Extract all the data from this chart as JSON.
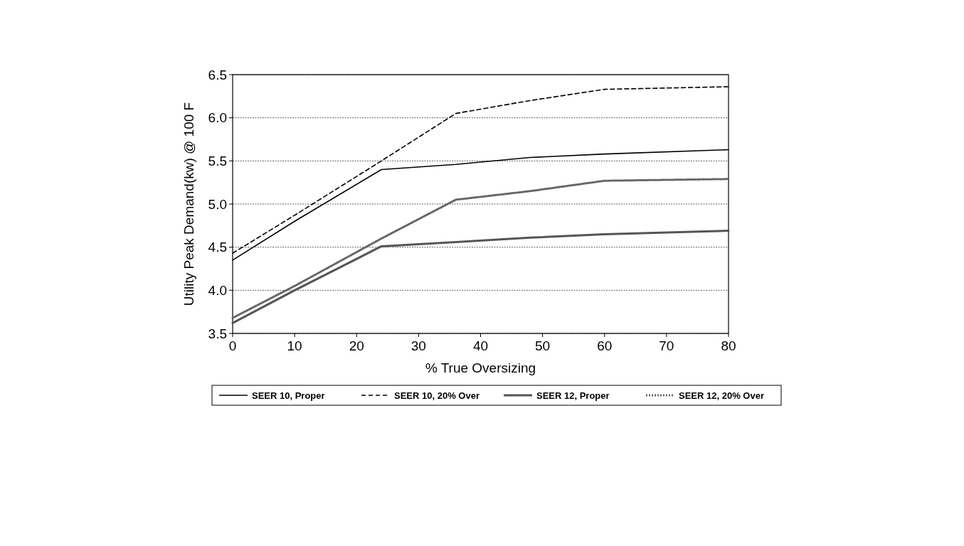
{
  "chart_data": {
    "type": "line",
    "xlabel": "% True Oversizing",
    "ylabel": "Utility Peak Demand(kw) @ 100 F",
    "xlim": [
      0,
      80
    ],
    "xticks": [
      0,
      10,
      20,
      30,
      40,
      50,
      60,
      70,
      80
    ],
    "ylim": [
      3.5,
      6.5
    ],
    "yticks": [
      {
        "value": 3.5,
        "label": "3.5"
      },
      {
        "value": 4,
        "label": "4.0"
      },
      {
        "value": 4.5,
        "label": "4.5"
      },
      {
        "value": 5,
        "label": "5.0"
      },
      {
        "value": 5.5,
        "label": "5.5"
      },
      {
        "value": 6,
        "label": "6.0"
      },
      {
        "value": 6.5,
        "label": "6.5"
      }
    ],
    "grid": "y",
    "legend": "bottom",
    "marker": "none",
    "series": [
      {
        "name": "SEER 10, Proper",
        "color": "#000000",
        "line_style": "solid",
        "x": [
          0,
          10,
          24,
          36,
          48,
          60,
          80
        ],
        "values": [
          4.35,
          4.8,
          5.4,
          5.46,
          5.54,
          5.58,
          5.63
        ]
      },
      {
        "name": "SEER 10, 20% Over",
        "color": "#000000",
        "line_style": "dashed",
        "x": [
          0,
          10,
          24,
          36,
          48,
          60,
          80
        ],
        "values": [
          4.43,
          4.87,
          5.5,
          6.05,
          6.2,
          6.33,
          6.36
        ]
      },
      {
        "name": "SEER 12, Proper",
        "color": "#555555",
        "line_style": "solid",
        "x": [
          0,
          10,
          24,
          36,
          48,
          60,
          80
        ],
        "values": [
          3.62,
          4.0,
          4.51,
          4.56,
          4.61,
          4.65,
          4.69
        ]
      },
      {
        "name": "SEER 12, 20% Over",
        "color": "#666666",
        "line_style": "dotted",
        "x": [
          0,
          10,
          24,
          36,
          48,
          60,
          80
        ],
        "values": [
          3.68,
          4.05,
          4.6,
          5.05,
          5.15,
          5.27,
          5.29
        ]
      }
    ]
  }
}
